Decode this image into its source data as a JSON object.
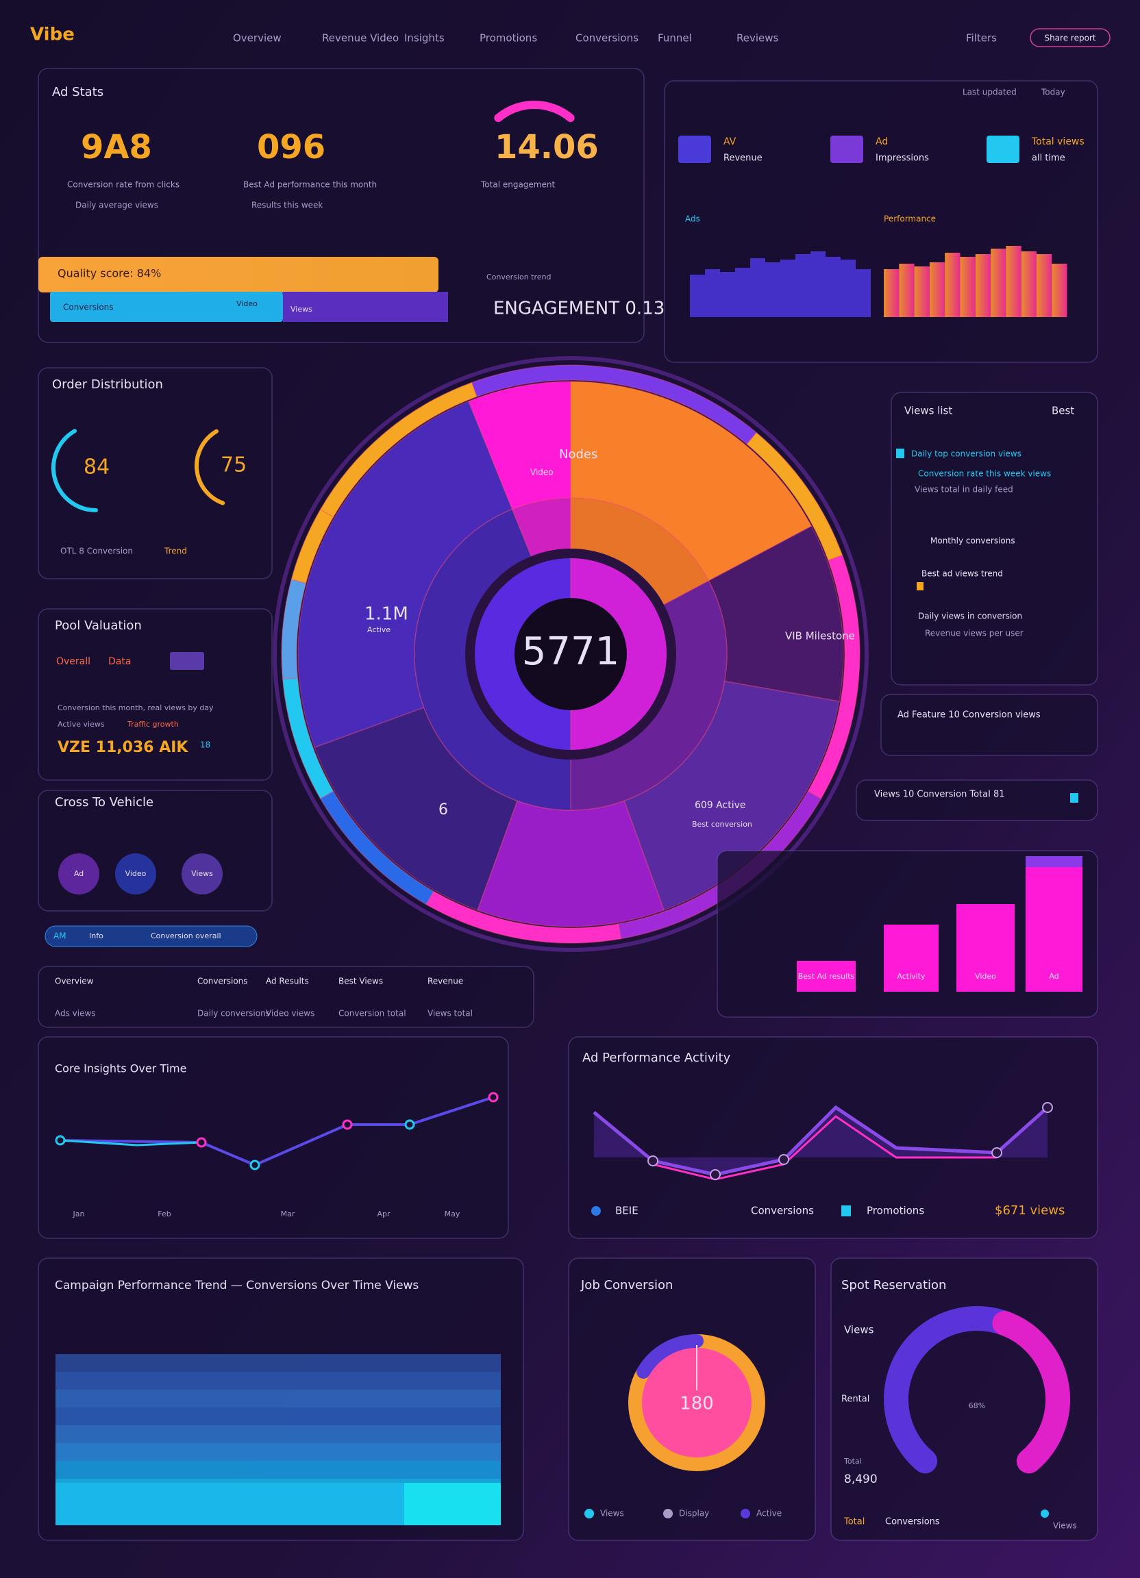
{
  "header": {
    "logo": "Vibe",
    "nav": [
      "Overview",
      "Revenue Video",
      "Insights",
      "Promotions",
      "Conversions",
      "Funnel",
      "Reviews"
    ],
    "filter": "Filters",
    "button": "Share report"
  },
  "ad_stats": {
    "title": "Ad Stats",
    "stats": [
      {
        "value": "9A8",
        "label": "Conversion rate from clicks",
        "note": "Daily average views"
      },
      {
        "value": "096",
        "label": "Best Ad performance this month",
        "note": "Results this week"
      },
      {
        "value": "14.06",
        "label": "Total engagement"
      }
    ],
    "quality": "Quality score: 84%",
    "bar_left": "Conversions",
    "bar_mid": "Video",
    "bar_right": "Views",
    "engagement_label": "Conversion trend",
    "engagement": "ENGAGEMENT 0.13"
  },
  "top_right": {
    "header_left": "Last updated",
    "header_right": "Today",
    "items": [
      {
        "title": "AV",
        "sub": "Revenue"
      },
      {
        "title": "Ad",
        "sub": "Impressions"
      },
      {
        "title": "Total views",
        "sub": "all time"
      }
    ],
    "chart_left": "Ads",
    "chart_right": "Performance"
  },
  "orders": {
    "title": "Order Distribution",
    "gauges": [
      "84",
      "75"
    ],
    "foot_left": "OTL 8 Conversion",
    "foot_right": "Trend"
  },
  "pool": {
    "title": "Pool Valuation",
    "line1": "Overall",
    "line2": "Data",
    "desc1": "Conversion this month, real views by day",
    "desc2": "Active views",
    "desc3": "Traffic growth",
    "big": "VZE 11,036 AIK",
    "tag": "18"
  },
  "cross": {
    "title": "Cross To Vehicle",
    "bubbles": [
      "Ad",
      "Video",
      "Views"
    ],
    "pill_left": "AM",
    "pill_mid": "Info",
    "pill_right": "Conversion overall"
  },
  "donut": {
    "center": "5771",
    "labels": [
      "Nodes",
      "Video",
      "1.1M",
      "Active",
      "VIB Milestone",
      "6",
      "609 Active",
      "Best conversion"
    ]
  },
  "feed": {
    "title": "Views list",
    "badge": "Best",
    "items": [
      "Daily top conversion views",
      "Conversion rate this week views",
      "Views total in daily feed",
      "Monthly conversions",
      "Best ad views trend",
      "Daily views in conversion",
      "Revenue views per user"
    ]
  },
  "cards": [
    "Ad Feature 10 Conversion views",
    "Views 10 Conversion Total 81"
  ],
  "bars": {
    "labels": [
      "Best Ad results",
      "Activity",
      "Video",
      "Ad"
    ]
  },
  "table": {
    "headers": [
      "Overview",
      "Conversions",
      "Ad Results",
      "Best Views",
      "Revenue"
    ],
    "row": [
      "Ads views",
      "Daily conversions",
      "Video views",
      "Conversion total",
      "Views total"
    ]
  },
  "core": {
    "title": "Core Insights Over Time",
    "x": [
      "Jan",
      "Feb",
      "Mar",
      "Apr",
      "May"
    ]
  },
  "activity": {
    "title": "Ad Performance Activity",
    "legend": [
      "BEIE",
      "Conversions",
      "Promotions"
    ],
    "value": "$671 views"
  },
  "campaign": {
    "title": "Campaign Performance Trend — Conversions Over Time Views"
  },
  "job": {
    "title": "Job Conversion",
    "center": "180",
    "legend": [
      "Views",
      "Display",
      "Active"
    ]
  },
  "spot": {
    "title": "Spot Reservation",
    "top": "Views",
    "mid": "Rental",
    "gauge": "68%",
    "foot": "Total",
    "big": "8,490",
    "legend": [
      "Total",
      "Conversions",
      "Views"
    ]
  }
}
